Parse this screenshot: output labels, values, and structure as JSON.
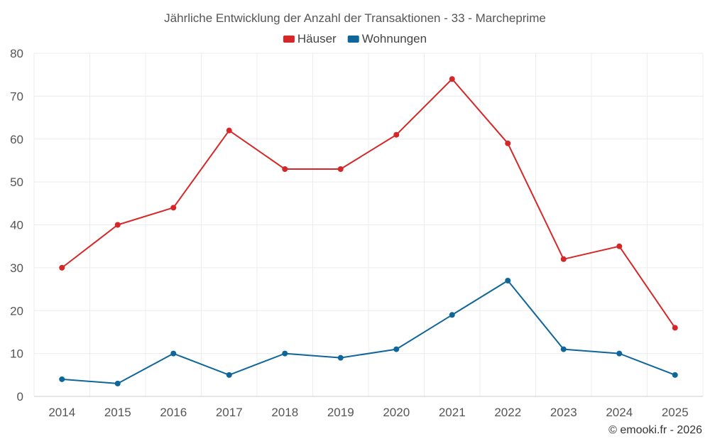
{
  "chart_data": {
    "type": "line",
    "title": "Jährliche Entwicklung der Anzahl der Transaktionen - 33 - Marcheprime",
    "categories": [
      "2014",
      "2015",
      "2016",
      "2017",
      "2018",
      "2019",
      "2020",
      "2021",
      "2022",
      "2023",
      "2024",
      "2025"
    ],
    "series": [
      {
        "name": "Häuser",
        "color": "#d62728",
        "values": [
          30,
          40,
          44,
          62,
          53,
          53,
          61,
          74,
          59,
          32,
          35,
          16
        ]
      },
      {
        "name": "Wohnungen",
        "color": "#0f6699",
        "values": [
          4,
          3,
          10,
          5,
          10,
          9,
          11,
          19,
          27,
          11,
          10,
          5
        ]
      }
    ],
    "ylim": [
      0,
      80
    ],
    "yticks": [
      0,
      10,
      20,
      30,
      40,
      50,
      60,
      70,
      80
    ],
    "grid": true,
    "legend": "top-center",
    "xlabel": "",
    "ylabel": ""
  },
  "credit": "© emooki.fr - 2026"
}
